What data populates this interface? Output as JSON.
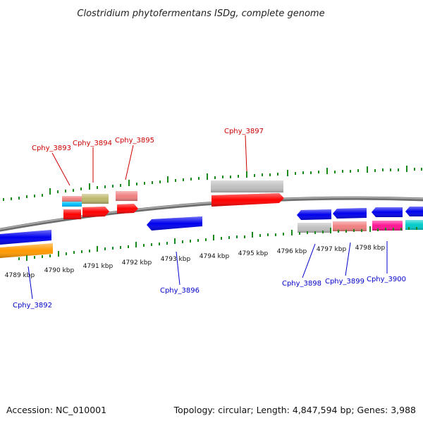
{
  "title": "Clostridium phytofermentans ISDg, complete genome",
  "footer": {
    "accession": "Accession: NC_010001",
    "summary": "Topology: circular; Length: 4,847,594 bp; Genes: 3,988"
  },
  "colors": {
    "tick": "#1a8a1a",
    "backbone": "#808080",
    "top_label": "#cc0000",
    "bottom_label": "#0000cc"
  },
  "scale_labels": [
    "4789 kbp",
    "4790 kbp",
    "4791 kbp",
    "4792 kbp",
    "4793 kbp",
    "4794 kbp",
    "4795 kbp",
    "4796 kbp",
    "4797 kbp",
    "4798 kbp"
  ],
  "gene_labels_top": [
    "Cphy_3893",
    "Cphy_3894",
    "Cphy_3895",
    "Cphy_3897"
  ],
  "gene_labels_bottom": [
    "Cphy_3892",
    "Cphy_3896",
    "Cphy_3898",
    "Cphy_3899",
    "Cphy_3900"
  ]
}
